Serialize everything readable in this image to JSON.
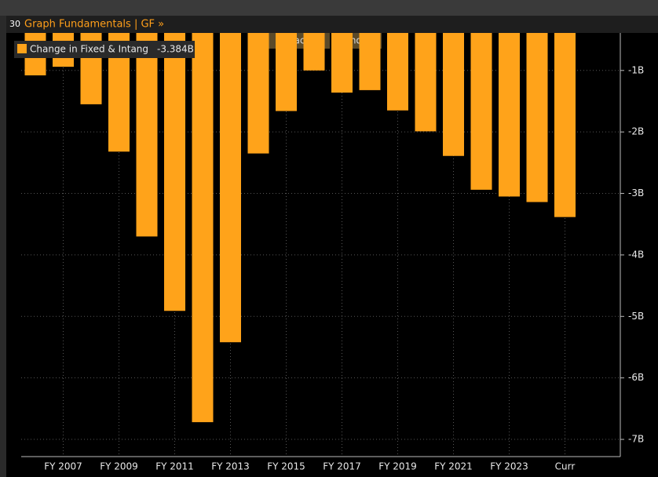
{
  "ui": {
    "panel": "30",
    "title": "Graph Fundamentals | GF »",
    "buttons": [
      "Track",
      "Annotate"
    ]
  },
  "chart_data": {
    "type": "bar",
    "categories": [
      null,
      "FY 2007",
      null,
      "FY 2009",
      null,
      "FY 2011",
      null,
      "FY 2013",
      null,
      "FY 2015",
      null,
      "FY 2017",
      null,
      "FY 2019",
      null,
      "FY 2021",
      null,
      "FY 2023",
      null,
      "Curr"
    ],
    "series": [
      {
        "name": "Change in Fixed & Intang",
        "legend_value": "-3.384B",
        "color": "#ffa31a",
        "values": [
          -1.08,
          -0.94,
          -1.55,
          -2.32,
          -3.7,
          -4.91,
          -6.72,
          -5.42,
          -2.35,
          -1.66,
          -1.0,
          -1.36,
          -1.32,
          -1.65,
          -1.99,
          -2.39,
          -2.94,
          -3.05,
          -3.14,
          -3.384
        ]
      }
    ],
    "ylim": [
      -7.28,
      -0.39
    ],
    "yticks": [
      {
        "value": -1,
        "label": "-1B"
      },
      {
        "value": -2,
        "label": "-2B"
      },
      {
        "value": -3,
        "label": "-3B"
      },
      {
        "value": -4,
        "label": "-4B"
      },
      {
        "value": -5,
        "label": "-5B"
      },
      {
        "value": -6,
        "label": "-6B"
      },
      {
        "value": -7,
        "label": "-7B"
      }
    ],
    "grid": true
  }
}
